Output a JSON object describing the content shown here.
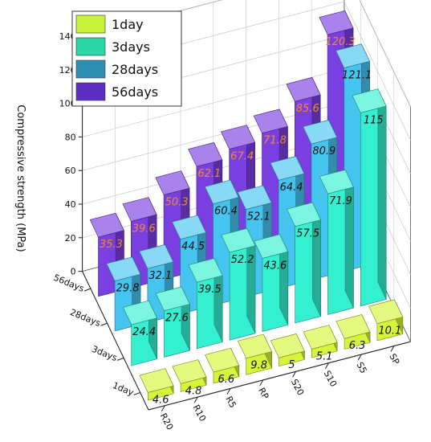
{
  "chart_data": {
    "type": "bar",
    "subtype": "3d-grouped-bar",
    "title": "",
    "ylabel": "Compressive strength (MPa)",
    "ylim": [
      0,
      140
    ],
    "yticks": [
      "0",
      "20",
      "40",
      "60",
      "80",
      "100",
      "120",
      "140"
    ],
    "categories": [
      "R20",
      "R10",
      "R5",
      "RP",
      "S20",
      "S10",
      "S5",
      "SP"
    ],
    "depth_labels": [
      "1day",
      "3days",
      "28days",
      "56days"
    ],
    "legend_position": "top-left",
    "grid": true,
    "series": [
      {
        "name": "1day",
        "color": "#d6f53a",
        "label_color": "#111111",
        "values": [
          4.6,
          4.8,
          6.6,
          9.8,
          5,
          5.1,
          6.3,
          10.1
        ],
        "labels": [
          "4.6",
          "4.8",
          "6.6",
          "9.8",
          "5",
          "5.1",
          "6.3",
          "10.1"
        ]
      },
      {
        "name": "3days",
        "color": "#34f0d0",
        "label_color": "#111111",
        "values": [
          24.4,
          27.6,
          39.5,
          52.2,
          43.6,
          57.5,
          71.9,
          115
        ],
        "labels": [
          "24.4",
          "27.6",
          "39.5",
          "52.2",
          "43.6",
          "57.5",
          "71.9",
          "115"
        ]
      },
      {
        "name": "28days",
        "color": "#46c4f0",
        "label_color": "#111111",
        "values": [
          29.8,
          32.1,
          44.5,
          60.4,
          52.1,
          64.4,
          80.9,
          121.1
        ],
        "labels": [
          "29.8",
          "32.1",
          "44.5",
          "60.4",
          "52.1",
          "64.4",
          "80.9",
          "121.1"
        ]
      },
      {
        "name": "56days",
        "color": "#7a3fe0",
        "label_color": "#f28c28",
        "values": [
          35.3,
          39.6,
          50.3,
          62.1,
          67.4,
          71.8,
          85.6,
          120.3
        ],
        "labels": [
          "35.3",
          "39.6",
          "50.3",
          "62.1",
          "67.4",
          "71.8",
          "85.6",
          "120.3"
        ]
      }
    ],
    "legend_swatch_colors": [
      "#c9f23a",
      "#2bd6a8",
      "#2f8fb0",
      "#5a2fc0"
    ]
  }
}
